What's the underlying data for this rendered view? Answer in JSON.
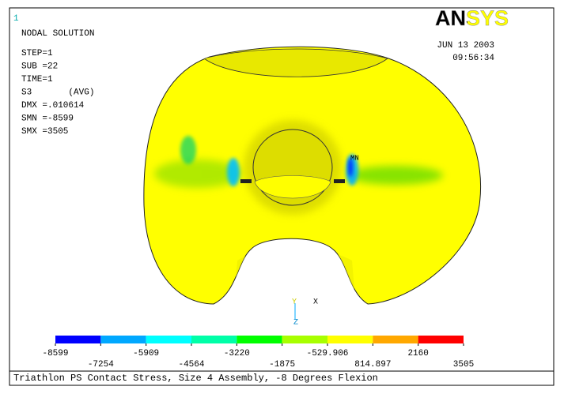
{
  "window_number": "1",
  "heading": "NODAL SOLUTION",
  "info": [
    "STEP=1",
    "SUB =22",
    "TIME=1",
    "S3       (AVG)",
    "DMX =.010614",
    "SMN =-8599",
    "SMX =3505"
  ],
  "date": "JUN 13 2003",
  "time": "09:56:34",
  "logo": "ANSYS",
  "min_label": "MN",
  "triad": {
    "x": "X",
    "y": "Y",
    "z": "Z"
  },
  "legend": {
    "levels": [
      -8599,
      -7254,
      -5909,
      -4564,
      -3220,
      -1875,
      -529.906,
      814.897,
      2160,
      3505
    ],
    "colors": [
      "#0000ff",
      "#00a8ff",
      "#00ffff",
      "#00ffa8",
      "#00ff00",
      "#a8ff00",
      "#ffff00",
      "#ffa800",
      "#ff0000"
    ]
  },
  "caption": "Triathlon PS Contact Stress, Size 4 Assembly, -8 Degrees Flexion"
}
